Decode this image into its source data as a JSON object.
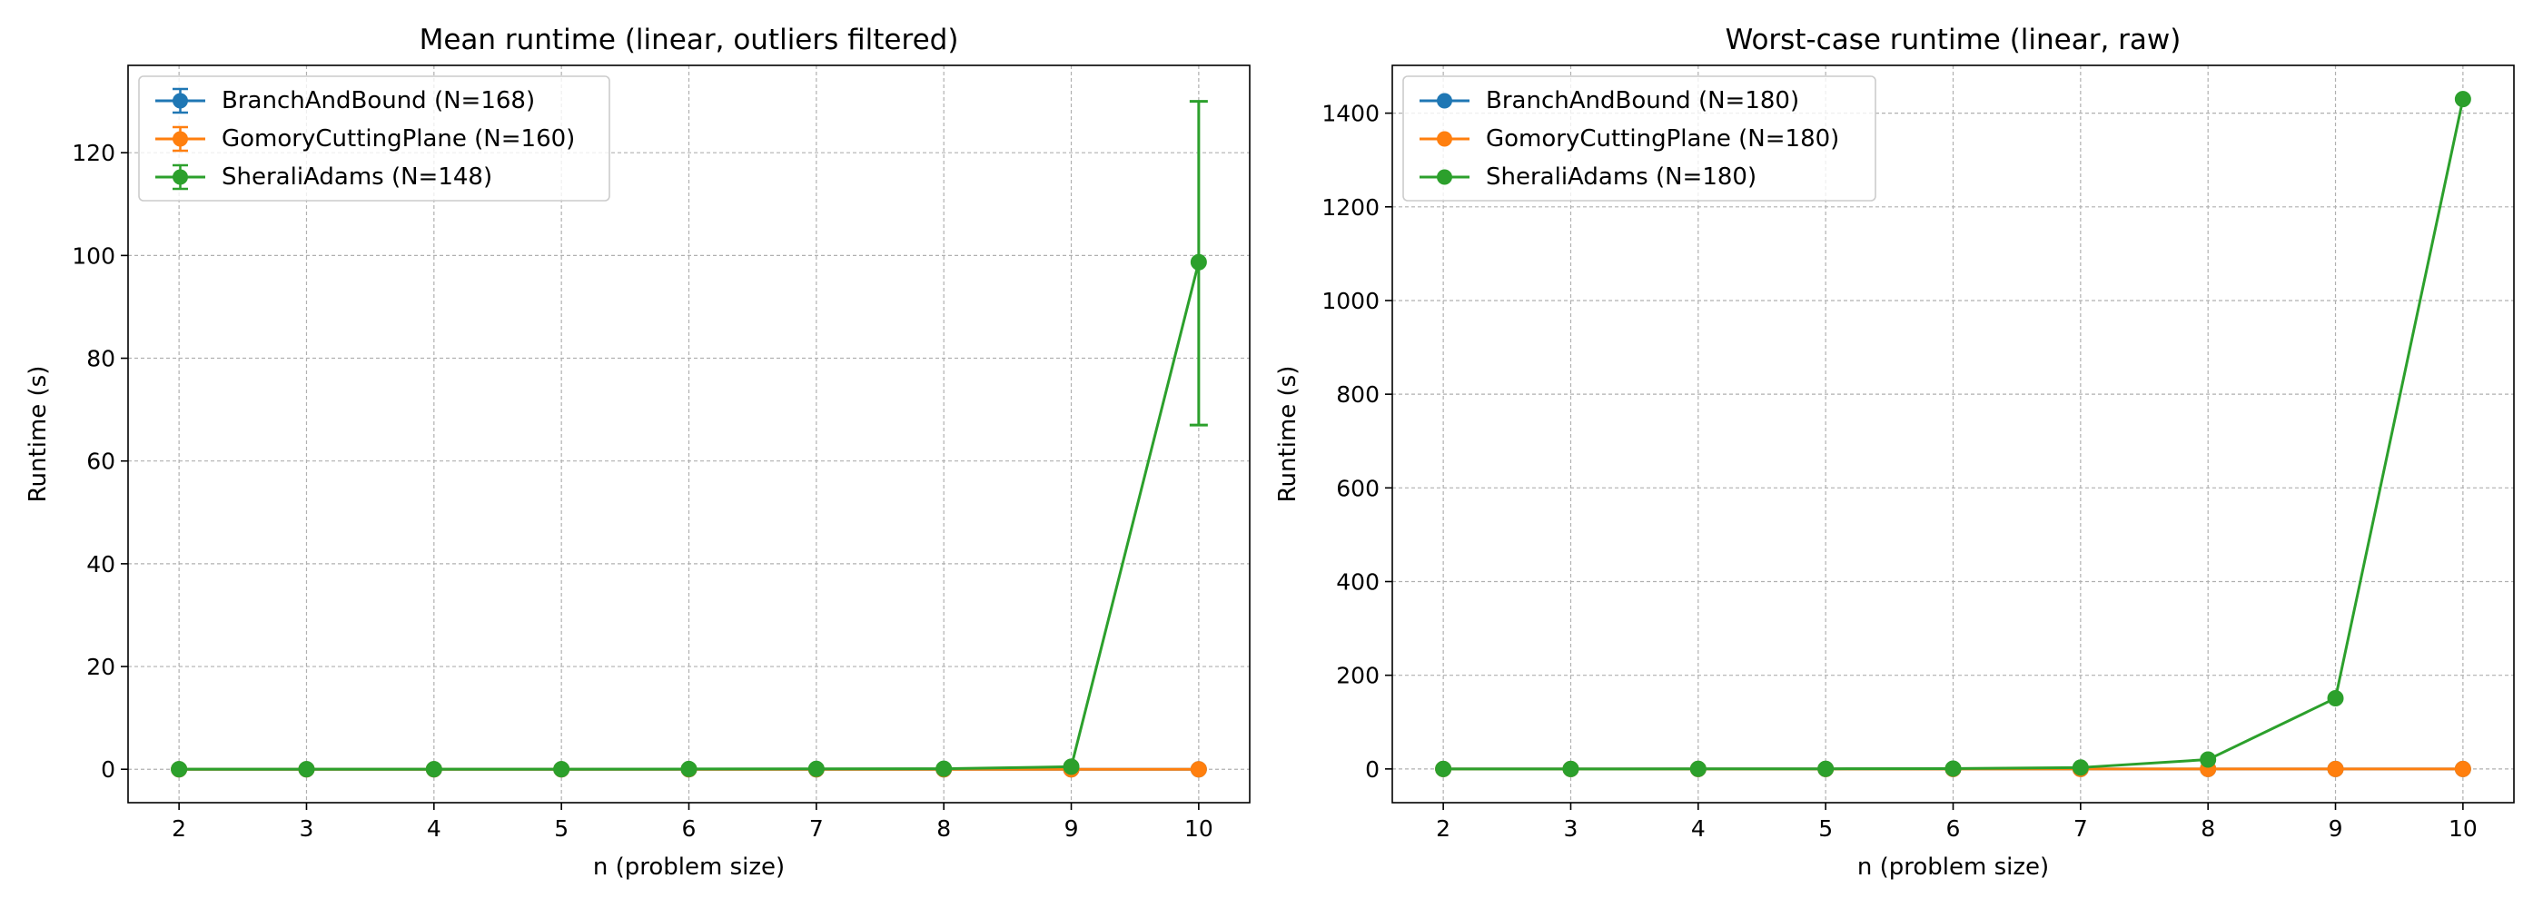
{
  "chart_data": [
    {
      "type": "line",
      "title": "Mean runtime (linear, outliers filtered)",
      "xlabel": "n (problem size)",
      "ylabel": "Runtime (s)",
      "x": [
        2,
        3,
        4,
        5,
        6,
        7,
        8,
        9,
        10
      ],
      "xticks": [
        2,
        3,
        4,
        5,
        6,
        7,
        8,
        9,
        10
      ],
      "yticks": [
        0,
        20,
        40,
        60,
        80,
        100,
        120
      ],
      "xlim": [
        1.6,
        10.4
      ],
      "ylim": [
        -6.5,
        137
      ],
      "grid": true,
      "legend_position": "top-left",
      "error_bars": true,
      "series": [
        {
          "name": "BranchAndBound (N=168)",
          "color": "#1f77b4",
          "values": [
            0,
            0,
            0,
            0,
            0,
            0,
            0,
            0,
            0
          ]
        },
        {
          "name": "GomoryCuttingPlane (N=160)",
          "color": "#ff7f0e",
          "values": [
            0,
            0,
            0,
            0,
            0,
            0,
            0,
            0,
            0
          ]
        },
        {
          "name": "SheraliAdams (N=148)",
          "color": "#2ca02c",
          "values": [
            0.01,
            0.01,
            0.01,
            0.02,
            0.05,
            0.08,
            0.1,
            0.5,
            98.7
          ],
          "error_low": [
            0,
            0,
            0,
            0,
            0,
            0,
            0,
            0,
            31.7
          ],
          "error_high": [
            0,
            0,
            0,
            0,
            0,
            0,
            0,
            0,
            31.3
          ]
        }
      ]
    },
    {
      "type": "line",
      "title": "Worst-case runtime (linear, raw)",
      "xlabel": "n (problem size)",
      "ylabel": "Runtime (s)",
      "x": [
        2,
        3,
        4,
        5,
        6,
        7,
        8,
        9,
        10
      ],
      "xticks": [
        2,
        3,
        4,
        5,
        6,
        7,
        8,
        9,
        10
      ],
      "yticks": [
        0,
        200,
        400,
        600,
        800,
        1000,
        1200,
        1400
      ],
      "xlim": [
        1.6,
        10.4
      ],
      "ylim": [
        -72,
        1502
      ],
      "grid": true,
      "legend_position": "top-left",
      "error_bars": false,
      "series": [
        {
          "name": "BranchAndBound (N=180)",
          "color": "#1f77b4",
          "values": [
            0,
            0,
            0,
            0,
            0,
            0,
            0,
            0,
            0
          ]
        },
        {
          "name": "GomoryCuttingPlane (N=180)",
          "color": "#ff7f0e",
          "values": [
            0,
            0,
            0,
            0,
            0,
            0,
            0,
            0,
            0
          ]
        },
        {
          "name": "SheraliAdams (N=180)",
          "color": "#2ca02c",
          "values": [
            0.02,
            0.05,
            0.1,
            0.3,
            0.8,
            3,
            20,
            151,
            1430
          ]
        }
      ]
    }
  ]
}
